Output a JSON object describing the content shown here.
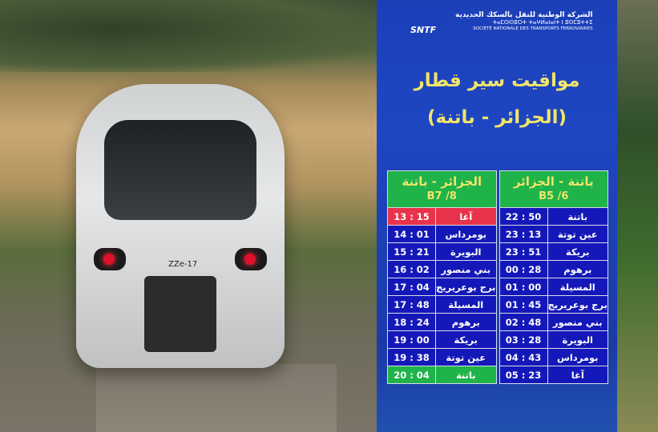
{
  "logo": {
    "arabic": "الشركة الوطنية للنقل بالسكك الحديدية",
    "tifinagh": "ⵜⴰⵎⵙⵙⵓⵔⵜ ⵜⴰⵖⵍⴰⵏⴰⵏⵜ ⵏ ⵓⵙⵎⵓⵜⵜⵉ",
    "french": "SOCIÉTÉ NATIONALE DES TRANSPORTS FERROVIAIRES",
    "brand": "SNTF"
  },
  "train_label": "ZZe-17",
  "title": "مواقيت سير قطار",
  "route": "(الجزائر - باتنة)",
  "colors": {
    "panel": "#1b3fb8",
    "header": "#1fb34a",
    "header_text": "#f0e56a",
    "cell": "#1518b8",
    "highlight_start": "#e8334a",
    "highlight_end": "#1fb34a"
  },
  "table": {
    "right": {
      "direction": "باتنة - الجزائر",
      "code": "B5 /6",
      "rows": [
        [
          "باتنة",
          "22 : 50"
        ],
        [
          "عين توتة",
          "23 : 13"
        ],
        [
          "بريكة",
          "23 : 51"
        ],
        [
          "برهوم",
          "00 : 28"
        ],
        [
          "المسيلة",
          "01 : 00"
        ],
        [
          "برج بوعريريج",
          "01 : 45"
        ],
        [
          "بني منصور",
          "02 : 48"
        ],
        [
          "البويرة",
          "03 : 28"
        ],
        [
          "بومرداس",
          "04 : 43"
        ],
        [
          "آغا",
          "05 : 23"
        ]
      ]
    },
    "left": {
      "direction": "الجزائر - باتنة",
      "code": "B7 /8",
      "rows": [
        [
          "آغا",
          "13 : 15"
        ],
        [
          "بومرداس",
          "14 : 01"
        ],
        [
          "البويرة",
          "15 : 21"
        ],
        [
          "بني منصور",
          "16 : 02"
        ],
        [
          "برج بوعريريج",
          "17 : 04"
        ],
        [
          "المسيلة",
          "17 : 48"
        ],
        [
          "برهوم",
          "18 : 24"
        ],
        [
          "بريكة",
          "19 : 00"
        ],
        [
          "عين توتة",
          "19 : 38"
        ],
        [
          "باتنة",
          "20 : 04"
        ]
      ]
    }
  }
}
